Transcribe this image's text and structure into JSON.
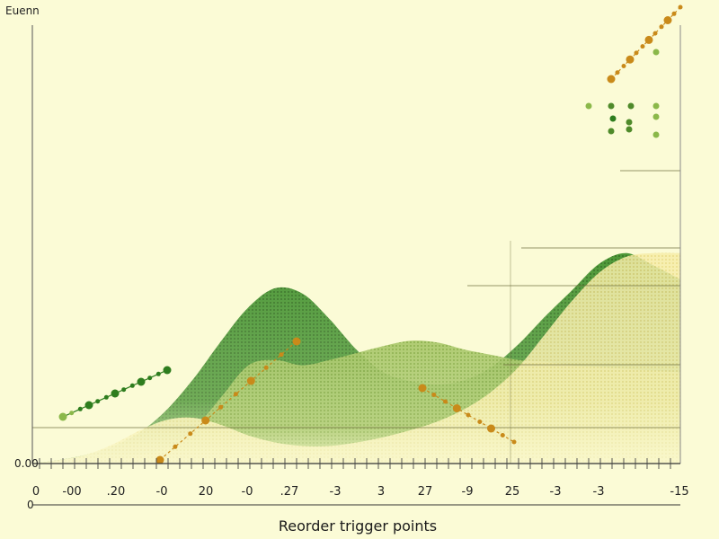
{
  "chart_data": {
    "type": "area",
    "title": "Reorder trigger points",
    "legend_label": "Euenn",
    "y_origin_label": "0.00",
    "x_tick_labels": [
      "0",
      "-00",
      ".20",
      "-0",
      "20",
      "-0",
      ".27",
      "-3",
      "3",
      "27",
      "-9",
      "25",
      "-3",
      "-3",
      "-15"
    ],
    "x_axis_start_label": "0",
    "grid": false,
    "colors": {
      "background": "#fbfbd6",
      "dark_green": "#2e7d1e",
      "light_green": "#8bb84a",
      "yellow_fill": "#f2e79a",
      "marker_orange": "#c98a1a",
      "axis": "#333333"
    },
    "series": [
      {
        "values": [
          0,
          4,
          10,
          20,
          36,
          62,
          98,
          140,
          178,
          200,
          194,
          165,
          130,
          104,
          94,
          90,
          95,
          110,
          136,
          168,
          198,
          228,
          240,
          226,
          210
        ]
      },
      {
        "values": [
          0,
          4,
          10,
          22,
          38,
          50,
          52,
          44,
          32,
          24,
          20,
          20,
          24,
          30,
          38,
          48,
          62,
          82,
          110,
          148,
          186,
          218,
          236,
          240,
          240
        ]
      },
      {
        "values": [
          0,
          0,
          0,
          4,
          10,
          18,
          40,
          76,
          112,
          118,
          112,
          118,
          126,
          134,
          140,
          138,
          130,
          124,
          118,
          116,
          112,
          110,
          108,
          106,
          104
        ]
      }
    ],
    "marker_lines": [
      {
        "points": [
          [
            0,
            12
          ],
          [
            1,
            20
          ],
          [
            2,
            25
          ],
          [
            3,
            32
          ],
          [
            4,
            40
          ],
          [
            5,
            48
          ],
          [
            6,
            56
          ],
          [
            7,
            70
          ],
          [
            8,
            78
          ],
          [
            9,
            84
          ],
          [
            10,
            90
          ],
          [
            11,
            98
          ],
          [
            12,
            104
          ]
        ]
      },
      {
        "points": [
          [
            4,
            0
          ],
          [
            5,
            2
          ],
          [
            6,
            5
          ],
          [
            7,
            10
          ],
          [
            8,
            20
          ],
          [
            9,
            32
          ],
          [
            10,
            46
          ],
          [
            11,
            58
          ],
          [
            12,
            72
          ],
          [
            13,
            82
          ]
        ]
      },
      {
        "points": [
          [
            30,
            84
          ],
          [
            31,
            80
          ],
          [
            32,
            76
          ],
          [
            33,
            72
          ],
          [
            34,
            66
          ],
          [
            35,
            58
          ],
          [
            36,
            50
          ],
          [
            37,
            42
          ],
          [
            38,
            36
          ]
        ]
      },
      {
        "points": [
          [
            50,
            300
          ],
          [
            51,
            320
          ],
          [
            52,
            340
          ],
          [
            53,
            360
          ],
          [
            54,
            380
          ],
          [
            55,
            400
          ],
          [
            56,
            416
          ],
          [
            57,
            432
          ],
          [
            58,
            446
          ],
          [
            59,
            458
          ],
          [
            60,
            470
          ],
          [
            61,
            486
          ]
        ]
      }
    ]
  }
}
